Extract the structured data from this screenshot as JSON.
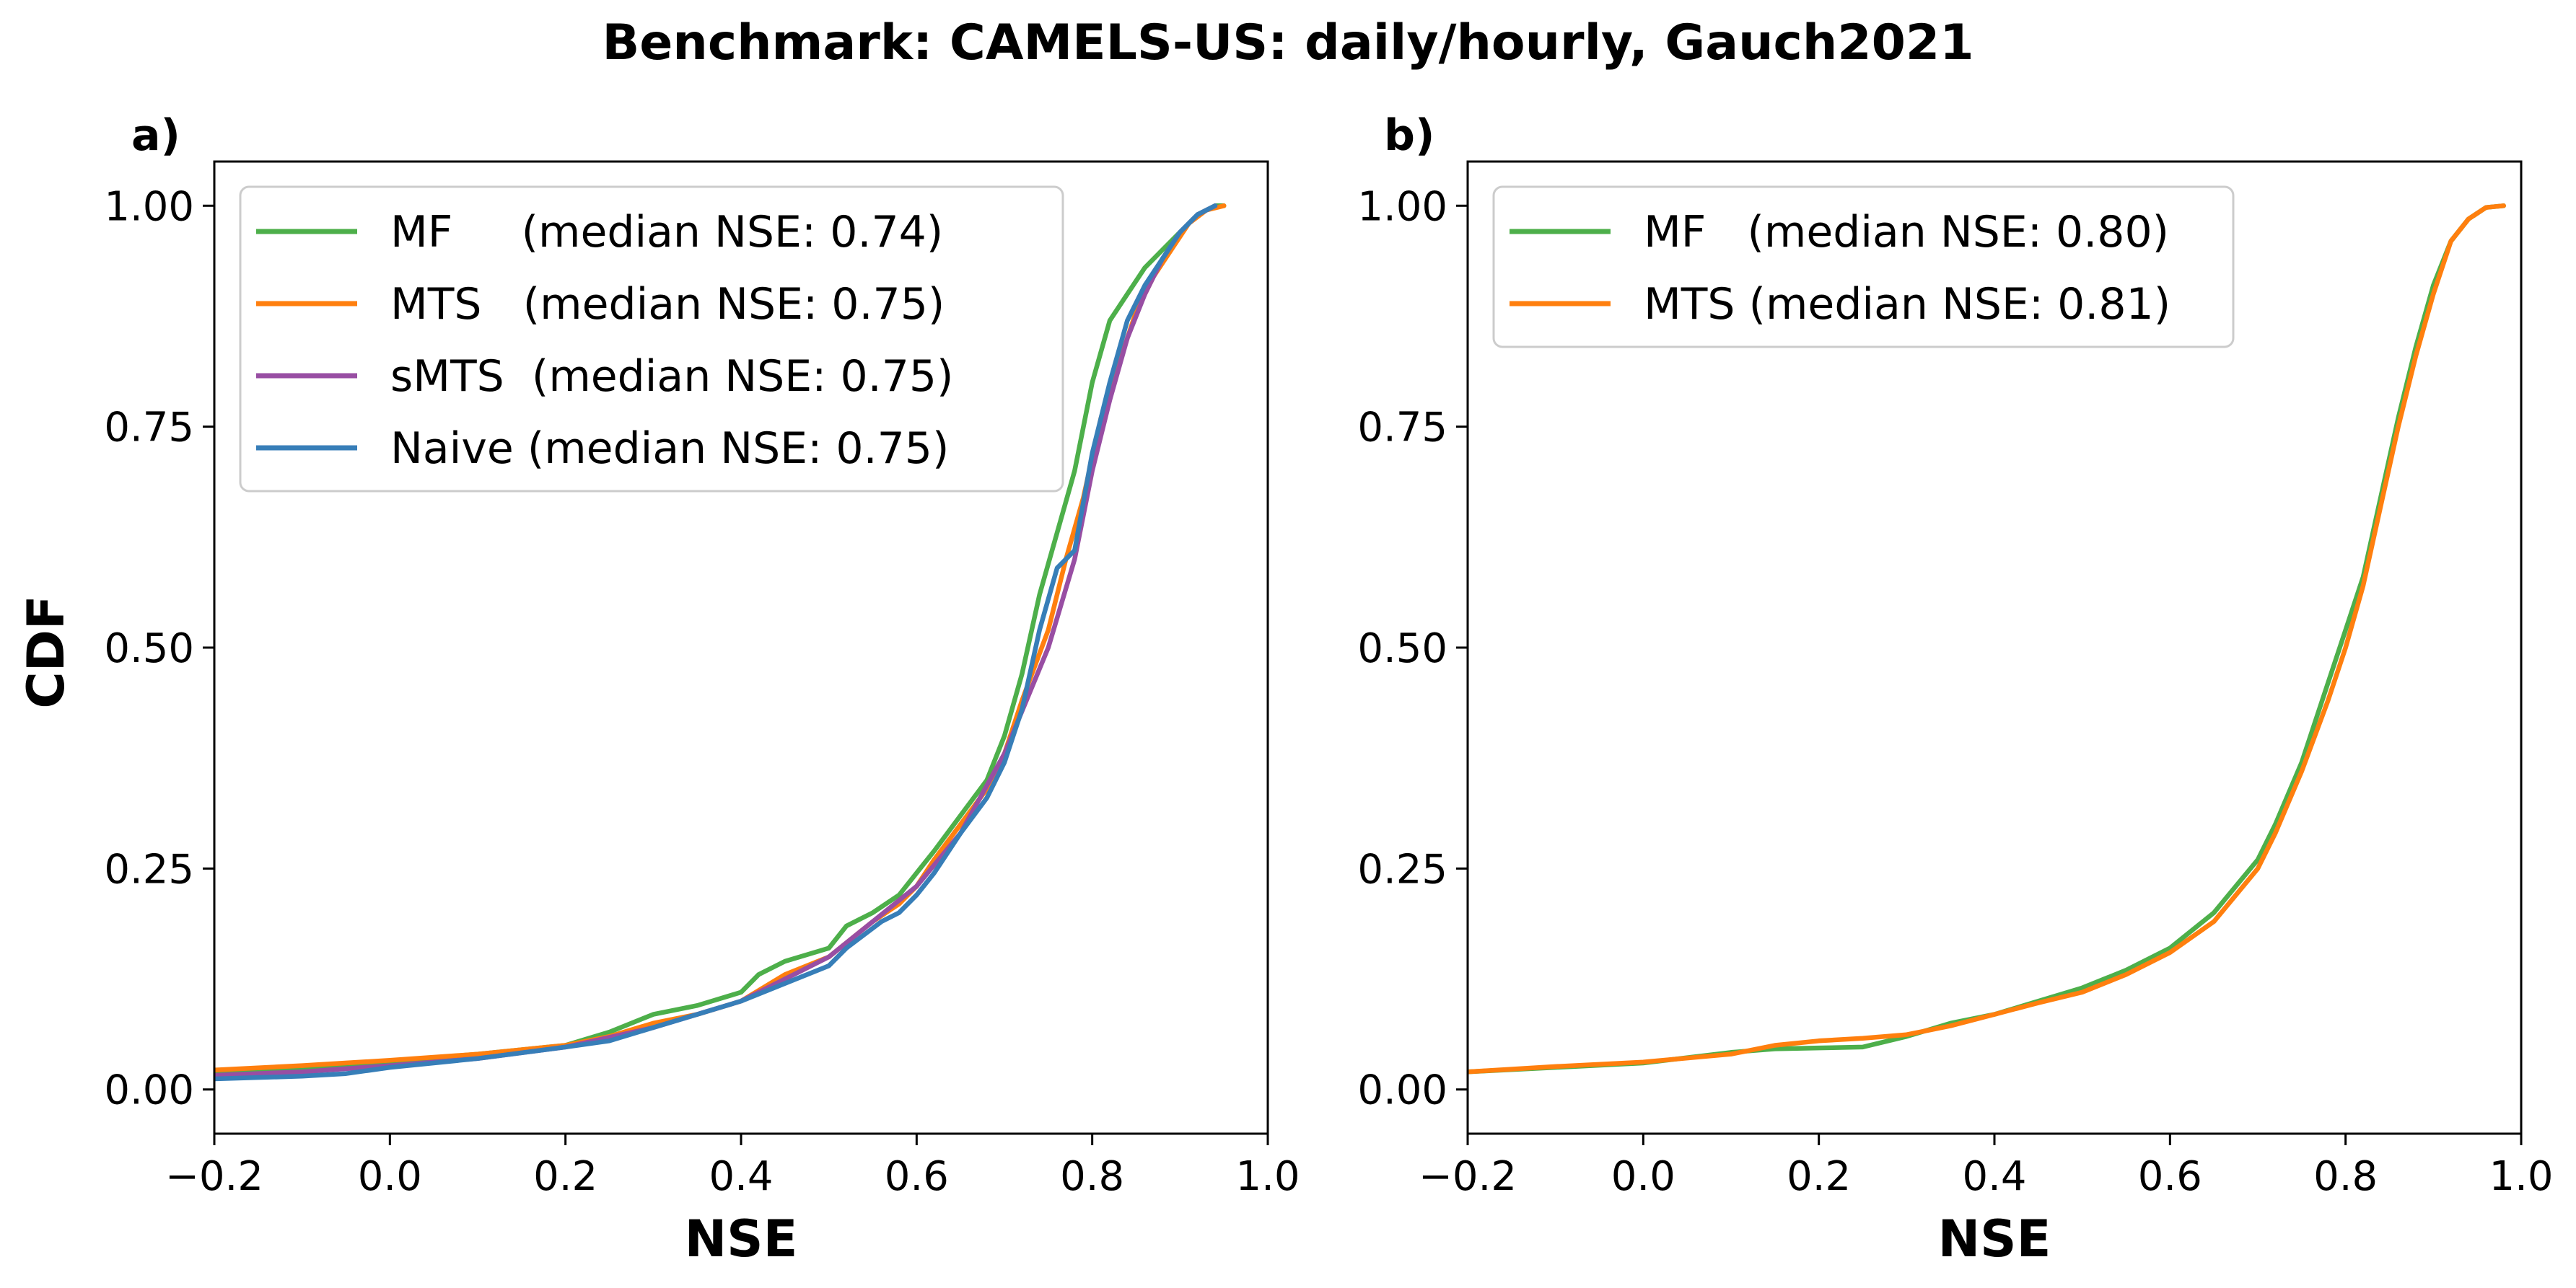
{
  "figure": {
    "title": "Benchmark: CAMELS-US: daily/hourly, Gauch2021"
  },
  "chart_data": [
    {
      "panel_label": "a)",
      "type": "line",
      "xlabel": "NSE",
      "ylabel": "CDF",
      "xlim": [
        -0.2,
        1.0
      ],
      "ylim": [
        -0.05,
        1.05
      ],
      "xticks": [
        "−0.2",
        "0.0",
        "0.2",
        "0.4",
        "0.6",
        "0.8",
        "1.0"
      ],
      "xtick_values": [
        -0.2,
        0.0,
        0.2,
        0.4,
        0.6,
        0.8,
        1.0
      ],
      "yticks": [
        "0.00",
        "0.25",
        "0.50",
        "0.75",
        "1.00"
      ],
      "ytick_values": [
        0.0,
        0.25,
        0.5,
        0.75,
        1.0
      ],
      "grid": false,
      "legend_position": "upper-left",
      "series": [
        {
          "name": "MF     (median NSE: 0.74)",
          "color": "#4daf4a",
          "x": [
            -0.2,
            -0.1,
            0.0,
            0.1,
            0.2,
            0.25,
            0.3,
            0.35,
            0.4,
            0.42,
            0.45,
            0.5,
            0.52,
            0.55,
            0.58,
            0.6,
            0.62,
            0.65,
            0.68,
            0.7,
            0.72,
            0.74,
            0.76,
            0.78,
            0.8,
            0.82,
            0.84,
            0.86,
            0.88,
            0.9,
            0.92,
            0.94,
            0.95
          ],
          "y": [
            0.02,
            0.025,
            0.032,
            0.04,
            0.05,
            0.065,
            0.085,
            0.095,
            0.11,
            0.13,
            0.145,
            0.16,
            0.185,
            0.2,
            0.22,
            0.245,
            0.27,
            0.31,
            0.35,
            0.4,
            0.47,
            0.56,
            0.63,
            0.7,
            0.8,
            0.87,
            0.9,
            0.93,
            0.95,
            0.97,
            0.99,
            1.0,
            1.0
          ]
        },
        {
          "name": "MTS   (median NSE: 0.75)",
          "color": "#ff7f0e",
          "x": [
            -0.2,
            -0.1,
            0.0,
            0.1,
            0.2,
            0.25,
            0.3,
            0.35,
            0.4,
            0.45,
            0.5,
            0.55,
            0.58,
            0.6,
            0.62,
            0.65,
            0.68,
            0.7,
            0.72,
            0.75,
            0.77,
            0.79,
            0.81,
            0.83,
            0.85,
            0.87,
            0.89,
            0.91,
            0.93,
            0.95
          ],
          "y": [
            0.022,
            0.027,
            0.033,
            0.04,
            0.05,
            0.06,
            0.075,
            0.085,
            0.1,
            0.13,
            0.15,
            0.19,
            0.21,
            0.23,
            0.26,
            0.3,
            0.34,
            0.38,
            0.44,
            0.52,
            0.6,
            0.67,
            0.76,
            0.82,
            0.88,
            0.92,
            0.95,
            0.98,
            0.995,
            1.0
          ]
        },
        {
          "name": "sMTS  (median NSE: 0.75)",
          "color": "#984ea3",
          "x": [
            -0.2,
            -0.1,
            0.0,
            0.1,
            0.2,
            0.3,
            0.4,
            0.5,
            0.55,
            0.6,
            0.65,
            0.7,
            0.75,
            0.78,
            0.8,
            0.82,
            0.84,
            0.86,
            0.88,
            0.9,
            0.92,
            0.94
          ],
          "y": [
            0.016,
            0.02,
            0.027,
            0.035,
            0.048,
            0.07,
            0.1,
            0.15,
            0.19,
            0.23,
            0.29,
            0.38,
            0.5,
            0.6,
            0.7,
            0.78,
            0.85,
            0.9,
            0.94,
            0.97,
            0.99,
            1.0
          ]
        },
        {
          "name": "Naive (median NSE: 0.75)",
          "color": "#377eb8",
          "x": [
            -0.2,
            -0.1,
            -0.05,
            0.0,
            0.1,
            0.2,
            0.25,
            0.3,
            0.35,
            0.4,
            0.45,
            0.5,
            0.52,
            0.54,
            0.56,
            0.58,
            0.6,
            0.62,
            0.65,
            0.68,
            0.7,
            0.72,
            0.74,
            0.76,
            0.78,
            0.8,
            0.82,
            0.84,
            0.86,
            0.88,
            0.9,
            0.92,
            0.94
          ],
          "y": [
            0.012,
            0.015,
            0.018,
            0.025,
            0.035,
            0.048,
            0.055,
            0.07,
            0.085,
            0.1,
            0.12,
            0.14,
            0.16,
            0.175,
            0.19,
            0.2,
            0.22,
            0.245,
            0.29,
            0.33,
            0.37,
            0.43,
            0.52,
            0.59,
            0.61,
            0.72,
            0.8,
            0.87,
            0.91,
            0.94,
            0.97,
            0.99,
            1.0
          ]
        }
      ]
    },
    {
      "panel_label": "b)",
      "type": "line",
      "xlabel": "NSE",
      "ylabel": "",
      "xlim": [
        -0.2,
        1.0
      ],
      "ylim": [
        -0.05,
        1.05
      ],
      "xticks": [
        "−0.2",
        "0.0",
        "0.2",
        "0.4",
        "0.6",
        "0.8",
        "1.0"
      ],
      "xtick_values": [
        -0.2,
        0.0,
        0.2,
        0.4,
        0.6,
        0.8,
        1.0
      ],
      "yticks": [
        "0.00",
        "0.25",
        "0.50",
        "0.75",
        "1.00"
      ],
      "ytick_values": [
        0.0,
        0.25,
        0.5,
        0.75,
        1.0
      ],
      "grid": false,
      "legend_position": "upper-left",
      "series": [
        {
          "name": "MF   (median NSE: 0.80)",
          "color": "#4daf4a",
          "x": [
            -0.2,
            -0.1,
            0.0,
            0.1,
            0.15,
            0.2,
            0.25,
            0.3,
            0.35,
            0.4,
            0.45,
            0.5,
            0.55,
            0.6,
            0.65,
            0.7,
            0.72,
            0.75,
            0.78,
            0.8,
            0.82,
            0.84,
            0.86,
            0.88,
            0.9,
            0.92,
            0.94,
            0.96,
            0.98
          ],
          "y": [
            0.02,
            0.025,
            0.03,
            0.042,
            0.046,
            0.047,
            0.048,
            0.06,
            0.075,
            0.085,
            0.1,
            0.115,
            0.135,
            0.16,
            0.2,
            0.26,
            0.3,
            0.37,
            0.46,
            0.52,
            0.58,
            0.67,
            0.76,
            0.84,
            0.91,
            0.96,
            0.985,
            0.998,
            1.0
          ]
        },
        {
          "name": "MTS (median NSE: 0.81)",
          "color": "#ff7f0e",
          "x": [
            -0.2,
            -0.1,
            0.0,
            0.1,
            0.15,
            0.2,
            0.25,
            0.3,
            0.35,
            0.4,
            0.45,
            0.5,
            0.55,
            0.6,
            0.65,
            0.7,
            0.72,
            0.75,
            0.78,
            0.8,
            0.82,
            0.84,
            0.86,
            0.88,
            0.9,
            0.92,
            0.94,
            0.96,
            0.98
          ],
          "y": [
            0.02,
            0.026,
            0.031,
            0.04,
            0.05,
            0.055,
            0.058,
            0.062,
            0.072,
            0.085,
            0.098,
            0.11,
            0.13,
            0.155,
            0.19,
            0.25,
            0.29,
            0.36,
            0.44,
            0.5,
            0.57,
            0.66,
            0.75,
            0.83,
            0.9,
            0.96,
            0.985,
            0.998,
            1.0
          ]
        }
      ]
    }
  ]
}
